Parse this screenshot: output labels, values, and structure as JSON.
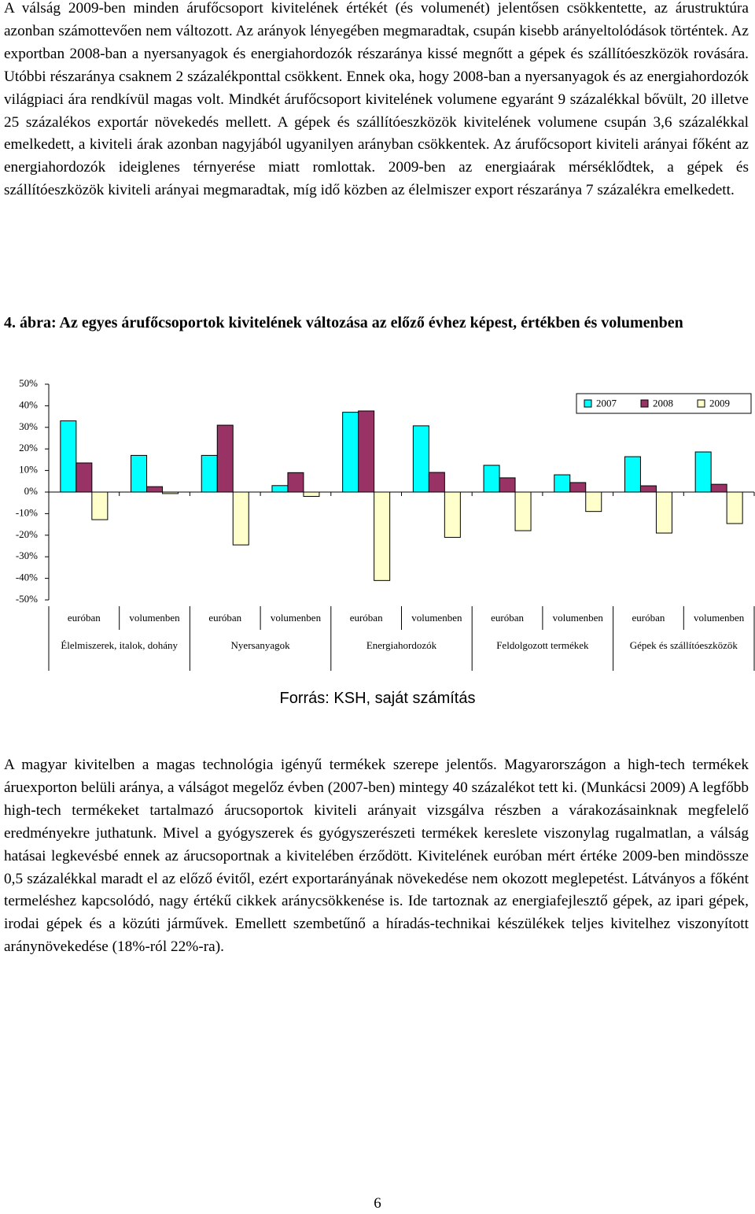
{
  "paragraphs": [
    "A válság 2009-ben minden árufőcsoport kivitelének értékét (és volumenét) jelentősen csökkentette, az árustruktúra azonban számottevően nem változott. Az arányok lényegében megmaradtak, csupán kisebb arányeltolódások történtek. Az exportban 2008-ban a nyersanyagok és energiahordozók részaránya kissé megnőtt a gépek és szállítóeszközök rovására. Utóbbi részaránya csaknem 2 százalékponttal csökkent. Ennek oka, hogy 2008-ban a nyersanyagok és az energiahordozók világpiaci ára rendkívül magas volt. Mindkét árufőcsoport kivitelének volumene egyaránt 9 százalékkal bővült, 20 illetve 25 százalékos exportár növekedés mellett. A gépek és szállítóeszközök kivitelének volumene csupán 3,6 százalékkal emelkedett, a kiviteli árak azonban nagyjából ugyanilyen arányban csökkentek. Az árufőcsoport kiviteli arányai főként az energiahordozók ideiglenes térnyerése miatt romlottak. 2009-ben az energiaárak mérséklődtek, a gépek és szállítóeszközök kiviteli arányai megmaradtak, míg idő közben az élelmiszer export részaránya 7 százalékra emelkedett.",
    "A magyar kivitelben a magas technológia igényű termékek szerepe jelentős. Magyarországon a high-tech termékek áruexporton belüli aránya, a válságot megelőz évben (2007-ben) mintegy 40 százalékot tett ki. (Munkácsi 2009) A legfőbb high-tech termékeket tartalmazó árucsoportok kiviteli arányait vizsgálva részben a várakozásainknak megfelelő eredményekre juthatunk. Mivel a gyógyszerek és gyógyszerészeti termékek kereslete viszonylag rugalmatlan, a válság hatásai legkevésbé ennek az árucsoportnak a kivitelében érződött. Kivitelének euróban mért értéke 2009-ben mindössze 0,5 százalékkal maradt el az előző évitől, ezért exportarányának növekedése nem okozott meglepetést. Látványos a főként termeléshez kapcsolódó, nagy értékű cikkek aránycsökkenése is. Ide tartoznak az energiafejlesztő gépek, az ipari gépek, irodai gépek és a közúti járművek. Emellett szembetűnő a híradás-technikai készülékek teljes kivitelhez viszonyított aránynövekedése (18%-ról 22%-ra)."
  ],
  "figure_title": "4. ábra: Az egyes árufőcsoportok kivitelének változása az előző évhez képest, értékben és volumenben",
  "chart_data": {
    "type": "bar",
    "categories": [
      "euróban",
      "volumenben",
      "euróban",
      "volumenben",
      "euróban",
      "volumenben",
      "euróban",
      "volumenben",
      "euróban",
      "volumenben"
    ],
    "groups": [
      "Élelmiszerek, italok, dohány",
      "Nyersanyagok",
      "Energiahordozók",
      "Feldolgozott termékek",
      "Gépek és szállítóeszközök"
    ],
    "series": [
      {
        "name": "2007",
        "color": "#00ffff",
        "values": [
          33,
          17,
          17,
          3,
          37,
          30.7,
          12.4,
          8,
          16.4,
          18.6
        ]
      },
      {
        "name": "2008",
        "color": "#993366",
        "values": [
          13.5,
          2.5,
          31,
          9,
          37.6,
          9.1,
          6.6,
          4.4,
          2.9,
          3.6
        ]
      },
      {
        "name": "2009",
        "color": "#ffffcc",
        "values": [
          -12.8,
          -0.7,
          -24.5,
          -2,
          -41,
          -21,
          -17.9,
          -9,
          -19,
          -14.6
        ]
      }
    ],
    "ylim": [
      -50,
      50
    ],
    "yticks": [
      {
        "value": -50,
        "label": "-50%"
      },
      {
        "value": -40,
        "label": "-40%"
      },
      {
        "value": -30,
        "label": "-30%"
      },
      {
        "value": -20,
        "label": "-20%"
      },
      {
        "value": -10,
        "label": "-10%"
      },
      {
        "value": 0,
        "label": "0%"
      },
      {
        "value": 10,
        "label": "10%"
      },
      {
        "value": 20,
        "label": "20%"
      },
      {
        "value": 30,
        "label": "30%"
      },
      {
        "value": 40,
        "label": "40%"
      },
      {
        "value": 50,
        "label": "50%"
      }
    ],
    "legend": "top-right"
  },
  "source": "Forrás: KSH, saját számítás",
  "page_number": "6"
}
